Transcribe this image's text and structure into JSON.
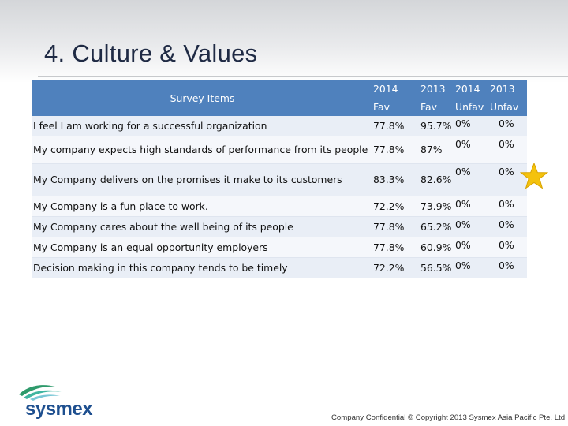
{
  "slide": {
    "title": "4. Culture & Values",
    "footer": "Company Confidential © Copyright 2013 Sysmex Asia Pacific Pte. Ltd.",
    "logo_text": "sysmex",
    "star_icon": "star-icon",
    "accent_color": "#4f81bd",
    "star_color": "#f4c20d"
  },
  "table": {
    "item_header": "Survey Items",
    "header_top": [
      "2014",
      "2013",
      "2014",
      "2013"
    ],
    "header_bottom": [
      "Fav",
      "Fav",
      "Unfav",
      "Unfav"
    ],
    "rows": [
      {
        "item": "I feel I am working for a successful organization",
        "fav_2014": "77.8%",
        "fav_2013": "95.7%",
        "unfav_2014": "0%",
        "unfav_2013": "0%"
      },
      {
        "item": "My company expects high standards of performance from its people",
        "fav_2014": "77.8%",
        "fav_2013": "87%",
        "unfav_2014": "0%",
        "unfav_2013": "0%"
      },
      {
        "item": "My Company delivers on the promises it make to its customers",
        "fav_2014": "83.3%",
        "fav_2013": "82.6%",
        "unfav_2014": "0%",
        "unfav_2013": "0%"
      },
      {
        "item": "My Company is a fun place to work.",
        "fav_2014": "72.2%",
        "fav_2013": "73.9%",
        "unfav_2014": "0%",
        "unfav_2013": "0%"
      },
      {
        "item": "My Company cares about the well being of its people",
        "fav_2014": "77.8%",
        "fav_2013": "65.2%",
        "unfav_2014": "0%",
        "unfav_2013": "0%"
      },
      {
        "item": "My Company is an equal opportunity employers",
        "fav_2014": "77.8%",
        "fav_2013": "60.9%",
        "unfav_2014": "0%",
        "unfav_2013": "0%"
      },
      {
        "item": "Decision making in this company tends to be timely",
        "fav_2014": "72.2%",
        "fav_2013": "56.5%",
        "unfav_2014": "0%",
        "unfav_2013": "0%"
      }
    ]
  }
}
